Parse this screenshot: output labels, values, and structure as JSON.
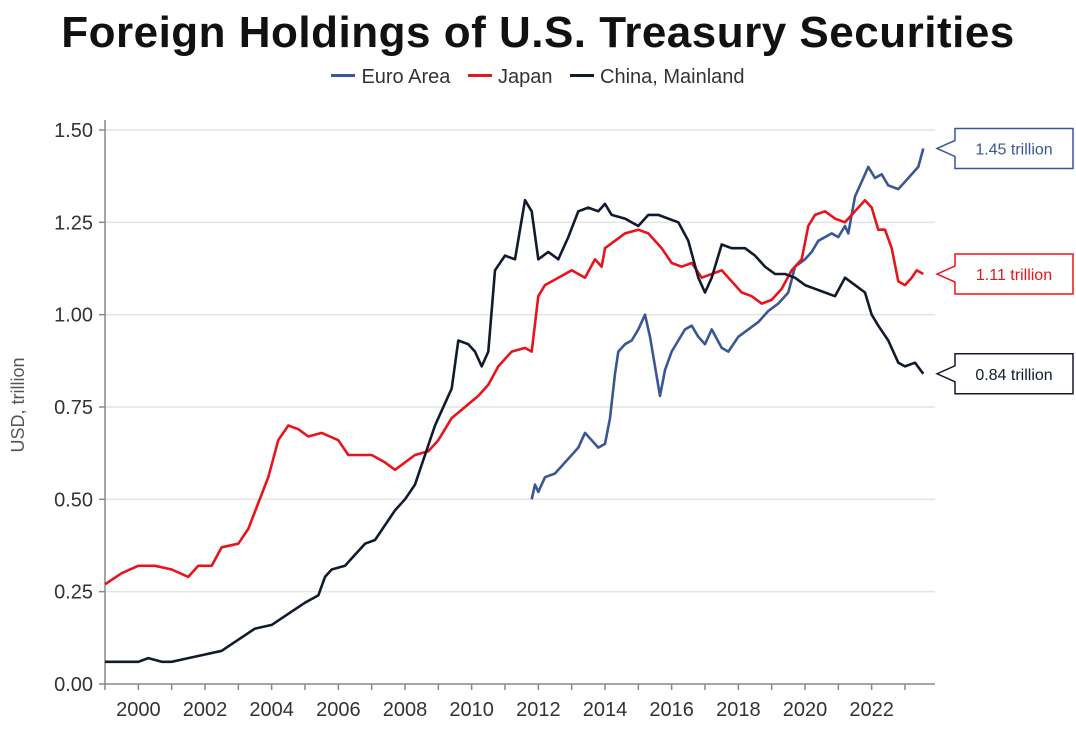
{
  "chart_data": {
    "type": "line",
    "title": "Foreign Holdings of U.S. Treasury Securities",
    "ylabel": "USD, trillion",
    "xlabel": "",
    "xlim": [
      1999.0,
      2023.9
    ],
    "ylim": [
      0,
      1.5
    ],
    "yticks": [
      "0.00",
      "0.25",
      "0.50",
      "0.75",
      "1.00",
      "1.25",
      "1.50"
    ],
    "xticks": [
      "2000",
      "2002",
      "2004",
      "2006",
      "2008",
      "2010",
      "2012",
      "2014",
      "2016",
      "2018",
      "2020",
      "2022"
    ],
    "grid": "horizontal",
    "legend_position": "top",
    "series": [
      {
        "name": "Euro Area",
        "color": "#3a5795",
        "end_label": "1.45 trillion",
        "points": [
          [
            2011.8,
            0.5
          ],
          [
            2011.9,
            0.54
          ],
          [
            2012.0,
            0.52
          ],
          [
            2012.2,
            0.56
          ],
          [
            2012.5,
            0.57
          ],
          [
            2012.8,
            0.6
          ],
          [
            2013.0,
            0.62
          ],
          [
            2013.2,
            0.64
          ],
          [
            2013.4,
            0.68
          ],
          [
            2013.6,
            0.66
          ],
          [
            2013.8,
            0.64
          ],
          [
            2014.0,
            0.65
          ],
          [
            2014.15,
            0.72
          ],
          [
            2014.3,
            0.84
          ],
          [
            2014.4,
            0.9
          ],
          [
            2014.6,
            0.92
          ],
          [
            2014.8,
            0.93
          ],
          [
            2015.0,
            0.96
          ],
          [
            2015.2,
            1.0
          ],
          [
            2015.35,
            0.94
          ],
          [
            2015.5,
            0.86
          ],
          [
            2015.65,
            0.78
          ],
          [
            2015.8,
            0.85
          ],
          [
            2016.0,
            0.9
          ],
          [
            2016.2,
            0.93
          ],
          [
            2016.4,
            0.96
          ],
          [
            2016.6,
            0.97
          ],
          [
            2016.8,
            0.94
          ],
          [
            2017.0,
            0.92
          ],
          [
            2017.2,
            0.96
          ],
          [
            2017.5,
            0.91
          ],
          [
            2017.7,
            0.9
          ],
          [
            2018.0,
            0.94
          ],
          [
            2018.3,
            0.96
          ],
          [
            2018.6,
            0.98
          ],
          [
            2018.9,
            1.01
          ],
          [
            2019.2,
            1.03
          ],
          [
            2019.5,
            1.06
          ],
          [
            2019.7,
            1.13
          ],
          [
            2020.0,
            1.15
          ],
          [
            2020.2,
            1.17
          ],
          [
            2020.4,
            1.2
          ],
          [
            2020.6,
            1.21
          ],
          [
            2020.8,
            1.22
          ],
          [
            2021.0,
            1.21
          ],
          [
            2021.2,
            1.24
          ],
          [
            2021.3,
            1.22
          ],
          [
            2021.5,
            1.32
          ],
          [
            2021.7,
            1.36
          ],
          [
            2021.9,
            1.4
          ],
          [
            2022.1,
            1.37
          ],
          [
            2022.3,
            1.38
          ],
          [
            2022.5,
            1.35
          ],
          [
            2022.8,
            1.34
          ],
          [
            2023.0,
            1.36
          ],
          [
            2023.2,
            1.38
          ],
          [
            2023.4,
            1.4
          ],
          [
            2023.55,
            1.45
          ]
        ]
      },
      {
        "name": "Japan",
        "color": "#e8141b",
        "end_label": "1.11 trillion",
        "points": [
          [
            1999.0,
            0.27
          ],
          [
            1999.5,
            0.3
          ],
          [
            2000.0,
            0.32
          ],
          [
            2000.5,
            0.32
          ],
          [
            2001.0,
            0.31
          ],
          [
            2001.5,
            0.29
          ],
          [
            2001.8,
            0.32
          ],
          [
            2002.2,
            0.32
          ],
          [
            2002.5,
            0.37
          ],
          [
            2003.0,
            0.38
          ],
          [
            2003.3,
            0.42
          ],
          [
            2003.6,
            0.49
          ],
          [
            2003.9,
            0.56
          ],
          [
            2004.2,
            0.66
          ],
          [
            2004.5,
            0.7
          ],
          [
            2004.8,
            0.69
          ],
          [
            2005.1,
            0.67
          ],
          [
            2005.5,
            0.68
          ],
          [
            2006.0,
            0.66
          ],
          [
            2006.3,
            0.62
          ],
          [
            2006.7,
            0.62
          ],
          [
            2007.0,
            0.62
          ],
          [
            2007.4,
            0.6
          ],
          [
            2007.7,
            0.58
          ],
          [
            2008.0,
            0.6
          ],
          [
            2008.3,
            0.62
          ],
          [
            2008.7,
            0.63
          ],
          [
            2009.0,
            0.66
          ],
          [
            2009.4,
            0.72
          ],
          [
            2009.8,
            0.75
          ],
          [
            2010.2,
            0.78
          ],
          [
            2010.5,
            0.81
          ],
          [
            2010.8,
            0.86
          ],
          [
            2011.2,
            0.9
          ],
          [
            2011.6,
            0.91
          ],
          [
            2011.8,
            0.9
          ],
          [
            2012.0,
            1.05
          ],
          [
            2012.2,
            1.08
          ],
          [
            2012.6,
            1.1
          ],
          [
            2013.0,
            1.12
          ],
          [
            2013.4,
            1.1
          ],
          [
            2013.7,
            1.15
          ],
          [
            2013.9,
            1.13
          ],
          [
            2014.0,
            1.18
          ],
          [
            2014.3,
            1.2
          ],
          [
            2014.6,
            1.22
          ],
          [
            2015.0,
            1.23
          ],
          [
            2015.3,
            1.22
          ],
          [
            2015.7,
            1.18
          ],
          [
            2016.0,
            1.14
          ],
          [
            2016.3,
            1.13
          ],
          [
            2016.6,
            1.14
          ],
          [
            2016.9,
            1.1
          ],
          [
            2017.2,
            1.11
          ],
          [
            2017.5,
            1.12
          ],
          [
            2017.8,
            1.09
          ],
          [
            2018.1,
            1.06
          ],
          [
            2018.4,
            1.05
          ],
          [
            2018.7,
            1.03
          ],
          [
            2019.0,
            1.04
          ],
          [
            2019.3,
            1.07
          ],
          [
            2019.6,
            1.12
          ],
          [
            2019.9,
            1.15
          ],
          [
            2020.1,
            1.24
          ],
          [
            2020.3,
            1.27
          ],
          [
            2020.6,
            1.28
          ],
          [
            2020.9,
            1.26
          ],
          [
            2021.2,
            1.25
          ],
          [
            2021.5,
            1.28
          ],
          [
            2021.8,
            1.31
          ],
          [
            2022.0,
            1.29
          ],
          [
            2022.2,
            1.23
          ],
          [
            2022.4,
            1.23
          ],
          [
            2022.6,
            1.18
          ],
          [
            2022.8,
            1.09
          ],
          [
            2023.0,
            1.08
          ],
          [
            2023.2,
            1.1
          ],
          [
            2023.35,
            1.12
          ],
          [
            2023.55,
            1.11
          ]
        ]
      },
      {
        "name": "China, Mainland",
        "color": "#111a2e",
        "end_label": "0.84 trillion",
        "points": [
          [
            1999.0,
            0.06
          ],
          [
            1999.5,
            0.06
          ],
          [
            2000.0,
            0.06
          ],
          [
            2000.3,
            0.07
          ],
          [
            2000.7,
            0.06
          ],
          [
            2001.0,
            0.06
          ],
          [
            2001.5,
            0.07
          ],
          [
            2002.0,
            0.08
          ],
          [
            2002.5,
            0.09
          ],
          [
            2003.0,
            0.12
          ],
          [
            2003.5,
            0.15
          ],
          [
            2004.0,
            0.16
          ],
          [
            2004.5,
            0.19
          ],
          [
            2005.0,
            0.22
          ],
          [
            2005.4,
            0.24
          ],
          [
            2005.6,
            0.29
          ],
          [
            2005.8,
            0.31
          ],
          [
            2006.2,
            0.32
          ],
          [
            2006.5,
            0.35
          ],
          [
            2006.8,
            0.38
          ],
          [
            2007.1,
            0.39
          ],
          [
            2007.4,
            0.43
          ],
          [
            2007.7,
            0.47
          ],
          [
            2008.0,
            0.5
          ],
          [
            2008.3,
            0.54
          ],
          [
            2008.6,
            0.62
          ],
          [
            2008.9,
            0.7
          ],
          [
            2009.2,
            0.76
          ],
          [
            2009.4,
            0.8
          ],
          [
            2009.6,
            0.93
          ],
          [
            2009.9,
            0.92
          ],
          [
            2010.1,
            0.9
          ],
          [
            2010.3,
            0.86
          ],
          [
            2010.5,
            0.9
          ],
          [
            2010.7,
            1.12
          ],
          [
            2011.0,
            1.16
          ],
          [
            2011.3,
            1.15
          ],
          [
            2011.6,
            1.31
          ],
          [
            2011.8,
            1.28
          ],
          [
            2012.0,
            1.15
          ],
          [
            2012.3,
            1.17
          ],
          [
            2012.6,
            1.15
          ],
          [
            2012.9,
            1.21
          ],
          [
            2013.2,
            1.28
          ],
          [
            2013.5,
            1.29
          ],
          [
            2013.8,
            1.28
          ],
          [
            2014.0,
            1.3
          ],
          [
            2014.2,
            1.27
          ],
          [
            2014.6,
            1.26
          ],
          [
            2015.0,
            1.24
          ],
          [
            2015.3,
            1.27
          ],
          [
            2015.6,
            1.27
          ],
          [
            2015.9,
            1.26
          ],
          [
            2016.2,
            1.25
          ],
          [
            2016.5,
            1.2
          ],
          [
            2016.8,
            1.1
          ],
          [
            2017.0,
            1.06
          ],
          [
            2017.2,
            1.1
          ],
          [
            2017.5,
            1.19
          ],
          [
            2017.8,
            1.18
          ],
          [
            2018.2,
            1.18
          ],
          [
            2018.5,
            1.16
          ],
          [
            2018.8,
            1.13
          ],
          [
            2019.1,
            1.11
          ],
          [
            2019.4,
            1.11
          ],
          [
            2019.7,
            1.1
          ],
          [
            2020.0,
            1.08
          ],
          [
            2020.3,
            1.07
          ],
          [
            2020.6,
            1.06
          ],
          [
            2020.9,
            1.05
          ],
          [
            2021.2,
            1.1
          ],
          [
            2021.5,
            1.08
          ],
          [
            2021.8,
            1.06
          ],
          [
            2022.0,
            1.0
          ],
          [
            2022.2,
            0.97
          ],
          [
            2022.5,
            0.93
          ],
          [
            2022.8,
            0.87
          ],
          [
            2023.0,
            0.86
          ],
          [
            2023.3,
            0.87
          ],
          [
            2023.55,
            0.84
          ]
        ]
      }
    ]
  }
}
